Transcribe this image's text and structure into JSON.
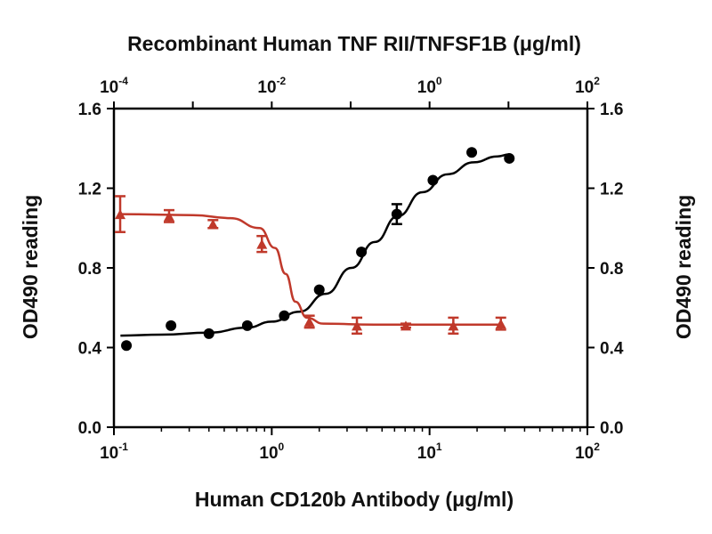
{
  "chart_data": {
    "type": "scatter",
    "top_xlabel": "Recombinant Human TNF RII/TNFSF1B (μg/ml)",
    "bottom_xlabel": "Human CD120b Antibody (μg/ml)",
    "ylabel_left": "OD490 reading",
    "ylabel_right": "OD490 reading",
    "bottom_xaxis": {
      "scale": "log",
      "range": [
        0.1,
        100
      ],
      "tick_bases": [
        "10",
        "10",
        "10",
        "10"
      ],
      "tick_exponents": [
        "-1",
        "0",
        "1",
        "2"
      ],
      "tick_values": [
        0.1,
        1,
        10,
        100
      ]
    },
    "top_xaxis": {
      "scale": "log",
      "range": [
        0.0001,
        100
      ],
      "tick_bases": [
        "10",
        "10",
        "10",
        "10"
      ],
      "tick_exponents": [
        "-4",
        "-2",
        "0",
        "2"
      ],
      "tick_values": [
        0.0001,
        0.01,
        1,
        100
      ]
    },
    "yaxis": {
      "range": [
        0,
        1.6
      ],
      "ticks": [
        "0.0",
        "0.4",
        "0.8",
        "1.2",
        "1.6"
      ],
      "tick_values": [
        0,
        0.4,
        0.8,
        1.2,
        1.6
      ]
    },
    "series": [
      {
        "axis": "bottom",
        "color": "#000000",
        "marker": "circle",
        "points": [
          {
            "x": 0.12,
            "y": 0.41
          },
          {
            "x": 0.23,
            "y": 0.51
          },
          {
            "x": 0.4,
            "y": 0.47
          },
          {
            "x": 0.7,
            "y": 0.51
          },
          {
            "x": 1.2,
            "y": 0.56
          },
          {
            "x": 2.0,
            "y": 0.69
          },
          {
            "x": 3.7,
            "y": 0.88
          },
          {
            "x": 6.2,
            "y": 1.07,
            "err": 0.05
          },
          {
            "x": 10.5,
            "y": 1.24
          },
          {
            "x": 18.5,
            "y": 1.38
          },
          {
            "x": 32,
            "y": 1.35
          }
        ],
        "curve": [
          {
            "x": 0.11,
            "y": 0.46
          },
          {
            "x": 0.2,
            "y": 0.465
          },
          {
            "x": 0.4,
            "y": 0.475
          },
          {
            "x": 0.7,
            "y": 0.5
          },
          {
            "x": 1.0,
            "y": 0.53
          },
          {
            "x": 1.5,
            "y": 0.58
          },
          {
            "x": 2.2,
            "y": 0.67
          },
          {
            "x": 3.2,
            "y": 0.8
          },
          {
            "x": 4.5,
            "y": 0.93
          },
          {
            "x": 6.3,
            "y": 1.06
          },
          {
            "x": 9.0,
            "y": 1.18
          },
          {
            "x": 13,
            "y": 1.27
          },
          {
            "x": 19,
            "y": 1.33
          },
          {
            "x": 27,
            "y": 1.36
          },
          {
            "x": 32,
            "y": 1.37
          }
        ]
      },
      {
        "axis": "top",
        "color": "#c0392b",
        "marker": "triangle",
        "points": [
          {
            "x": 0.00012,
            "y": 1.07,
            "err": 0.09
          },
          {
            "x": 0.0005,
            "y": 1.06,
            "err": 0.03
          },
          {
            "x": 0.0018,
            "y": 1.02,
            "err": 0.02
          },
          {
            "x": 0.0075,
            "y": 0.92,
            "err": 0.04
          },
          {
            "x": 0.03,
            "y": 0.53,
            "err": 0.03
          },
          {
            "x": 0.12,
            "y": 0.51,
            "err": 0.04
          },
          {
            "x": 0.5,
            "y": 0.51,
            "err": 0.01
          },
          {
            "x": 2.0,
            "y": 0.51,
            "err": 0.04
          },
          {
            "x": 8.0,
            "y": 0.52,
            "err": 0.03
          }
        ],
        "curve": [
          {
            "x": 0.00012,
            "y": 1.07
          },
          {
            "x": 0.001,
            "y": 1.065
          },
          {
            "x": 0.003,
            "y": 1.05
          },
          {
            "x": 0.007,
            "y": 1.0
          },
          {
            "x": 0.011,
            "y": 0.9
          },
          {
            "x": 0.015,
            "y": 0.77
          },
          {
            "x": 0.02,
            "y": 0.63
          },
          {
            "x": 0.028,
            "y": 0.55
          },
          {
            "x": 0.045,
            "y": 0.52
          },
          {
            "x": 0.2,
            "y": 0.515
          },
          {
            "x": 8.0,
            "y": 0.515
          }
        ]
      }
    ]
  }
}
